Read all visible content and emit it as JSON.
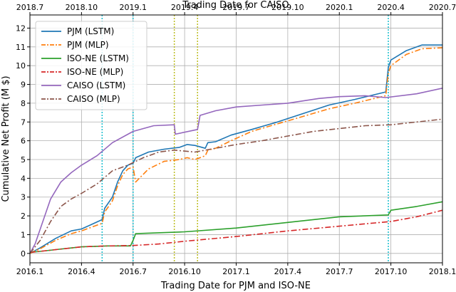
{
  "chart_data": {
    "type": "line",
    "xlabel_bottom": "Trading Date for PJM and ISO-NE",
    "xlabel_top": "Trading Date for CAISO",
    "ylabel": "Cumulative Net Profit (M $)",
    "ylim": [
      -0.5,
      12.7
    ],
    "yticks": [
      0,
      1,
      2,
      3,
      4,
      5,
      6,
      7,
      8,
      9,
      10,
      11,
      12
    ],
    "bottom_ticks": [
      "2016.1",
      "2016.4",
      "2016.7",
      "2016.10",
      "2017.1",
      "2017.4",
      "2017.7",
      "2017.10",
      "2018.1"
    ],
    "top_ticks": [
      "2018.7",
      "2018.10",
      "2019.1",
      "2019.4",
      "2019.7",
      "2019.10",
      "2020.1",
      "2020.4",
      "2020.7"
    ],
    "grid": true,
    "legend_position": "top-left",
    "colors": {
      "pjm": "#1f77b4",
      "pjm_mlp": "#ff7f0e",
      "isone": "#2ca02c",
      "isone_mlp": "#d62728",
      "caiso": "#9467bd",
      "caiso_mlp": "#8c564b",
      "marker_bottom": "#17becf",
      "marker_top": "#bcbd22"
    },
    "vertical_markers_bottom_axis": [
      1.4,
      2.0,
      6.95
    ],
    "vertical_markers_top_axis": [
      2.8,
      3.25
    ],
    "series": [
      {
        "name": "PJM (LSTM)",
        "color": "pjm",
        "style": "solid",
        "x": [
          0,
          0.2,
          0.5,
          0.8,
          1.0,
          1.2,
          1.4,
          1.45,
          1.6,
          1.7,
          1.8,
          1.9,
          2.0,
          2.05,
          2.3,
          2.6,
          2.9,
          3.05,
          3.2,
          3.4,
          3.45,
          3.6,
          3.9,
          4.3,
          4.8,
          5.3,
          5.8,
          6.3,
          6.9,
          6.95,
          7.0,
          7.3,
          7.6,
          8.0
        ],
        "y": [
          0,
          0.3,
          0.8,
          1.2,
          1.3,
          1.55,
          1.8,
          2.4,
          3.0,
          3.8,
          4.4,
          4.7,
          4.8,
          5.1,
          5.4,
          5.55,
          5.65,
          5.8,
          5.75,
          5.6,
          5.9,
          5.95,
          6.3,
          6.6,
          7.0,
          7.45,
          7.9,
          8.2,
          8.6,
          9.9,
          10.3,
          10.8,
          11.1,
          11.1
        ]
      },
      {
        "name": "PJM (MLP)",
        "color": "pjm_mlp",
        "style": "dashdot",
        "x": [
          0,
          0.2,
          0.5,
          0.8,
          1.0,
          1.2,
          1.4,
          1.45,
          1.6,
          1.7,
          1.8,
          1.9,
          2.0,
          2.05,
          2.3,
          2.6,
          2.9,
          3.05,
          3.2,
          3.4,
          3.45,
          3.6,
          3.9,
          4.3,
          4.8,
          5.3,
          5.8,
          6.3,
          6.9,
          6.95,
          7.0,
          7.3,
          7.6,
          8.0
        ],
        "y": [
          0,
          0.25,
          0.7,
          1.05,
          1.2,
          1.4,
          1.6,
          2.2,
          2.8,
          3.6,
          4.2,
          4.5,
          4.6,
          3.8,
          4.5,
          4.9,
          5.0,
          5.1,
          5.0,
          5.2,
          5.5,
          5.6,
          6.0,
          6.5,
          6.9,
          7.3,
          7.7,
          8.0,
          8.4,
          9.6,
          10.0,
          10.6,
          10.9,
          10.95
        ]
      },
      {
        "name": "ISO-NE (LSTM)",
        "color": "isone",
        "style": "solid",
        "x": [
          0,
          0.5,
          1.0,
          1.5,
          1.95,
          2.0,
          2.05,
          3.0,
          4.0,
          5.0,
          6.0,
          6.95,
          7.0,
          7.5,
          8.0
        ],
        "y": [
          0.05,
          0.2,
          0.35,
          0.4,
          0.4,
          0.7,
          1.05,
          1.15,
          1.35,
          1.65,
          1.95,
          2.05,
          2.3,
          2.5,
          2.75
        ]
      },
      {
        "name": "ISO-NE (MLP)",
        "color": "isone_mlp",
        "style": "dashdot",
        "x": [
          0,
          0.5,
          1.0,
          1.5,
          2.0,
          2.5,
          3.0,
          4.0,
          5.0,
          6.0,
          7.0,
          7.5,
          8.0
        ],
        "y": [
          0.05,
          0.2,
          0.35,
          0.4,
          0.42,
          0.5,
          0.65,
          0.9,
          1.2,
          1.45,
          1.7,
          1.95,
          2.3
        ]
      },
      {
        "name": "CAISO (LSTM)",
        "color": "caiso",
        "style": "solid",
        "x": [
          0,
          0.1,
          0.2,
          0.4,
          0.6,
          0.8,
          1.0,
          1.3,
          1.6,
          2.0,
          2.4,
          2.8,
          2.82,
          3.25,
          3.3,
          3.6,
          4.0,
          5.0,
          5.6,
          6.0,
          6.5,
          6.9,
          7.5,
          8.0
        ],
        "y": [
          0,
          0.5,
          1.3,
          2.9,
          3.8,
          4.3,
          4.7,
          5.2,
          5.9,
          6.5,
          6.8,
          6.85,
          6.35,
          6.6,
          7.35,
          7.6,
          7.8,
          8.0,
          8.25,
          8.35,
          8.4,
          8.3,
          8.5,
          8.8
        ]
      },
      {
        "name": "CAISO (MLP)",
        "color": "caiso_mlp",
        "style": "dashdot",
        "x": [
          0,
          0.2,
          0.4,
          0.6,
          0.8,
          1.0,
          1.3,
          1.6,
          1.9,
          2.2,
          2.5,
          2.8,
          3.2,
          3.6,
          4.0,
          4.5,
          5.0,
          5.5,
          6.0,
          6.5,
          7.0,
          7.5,
          8.0
        ],
        "y": [
          0,
          0.7,
          1.7,
          2.5,
          2.9,
          3.2,
          3.7,
          4.4,
          4.7,
          5.1,
          5.4,
          5.5,
          5.4,
          5.6,
          5.8,
          6.0,
          6.25,
          6.5,
          6.65,
          6.8,
          6.85,
          7.0,
          7.15
        ]
      }
    ]
  }
}
